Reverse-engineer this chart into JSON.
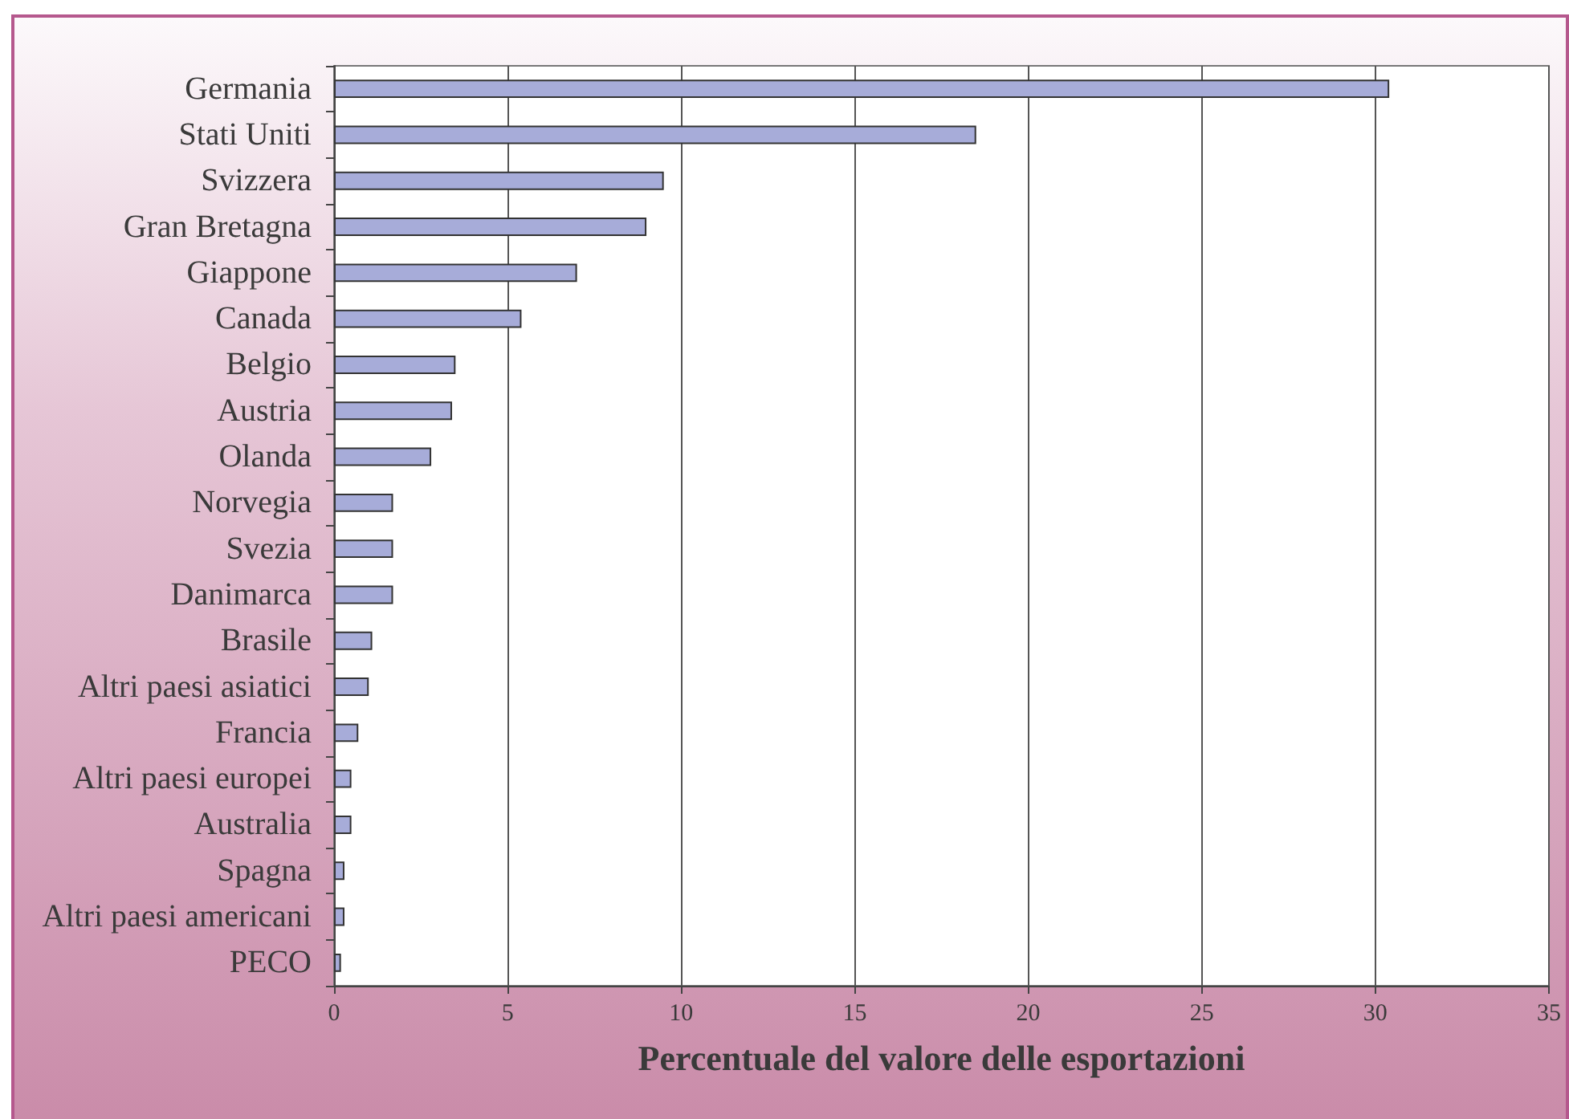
{
  "chart_data": {
    "type": "bar",
    "orientation": "horizontal",
    "xlabel": "Percentuale del valore delle esportazioni",
    "categories": [
      "Germania",
      "Stati Uniti",
      "Svizzera",
      "Gran Bretagna",
      "Giappone",
      "Canada",
      "Belgio",
      "Austria",
      "Olanda",
      "Norvegia",
      "Svezia",
      "Danimarca",
      "Brasile",
      "Altri paesi asiatici",
      "Francia",
      "Altri paesi europei",
      "Australia",
      "Spagna",
      "Altri paesi americani",
      "PECO"
    ],
    "values": [
      30.4,
      18.5,
      9.5,
      9.0,
      7.0,
      5.4,
      3.5,
      3.4,
      2.8,
      1.7,
      1.7,
      1.7,
      1.1,
      1.0,
      0.7,
      0.5,
      0.5,
      0.3,
      0.3,
      0.2
    ],
    "color": "#a7acd9",
    "xlim": [
      0,
      35
    ],
    "xticks": [
      0,
      5,
      10,
      15,
      20,
      25,
      30,
      35
    ],
    "grid": "x"
  }
}
